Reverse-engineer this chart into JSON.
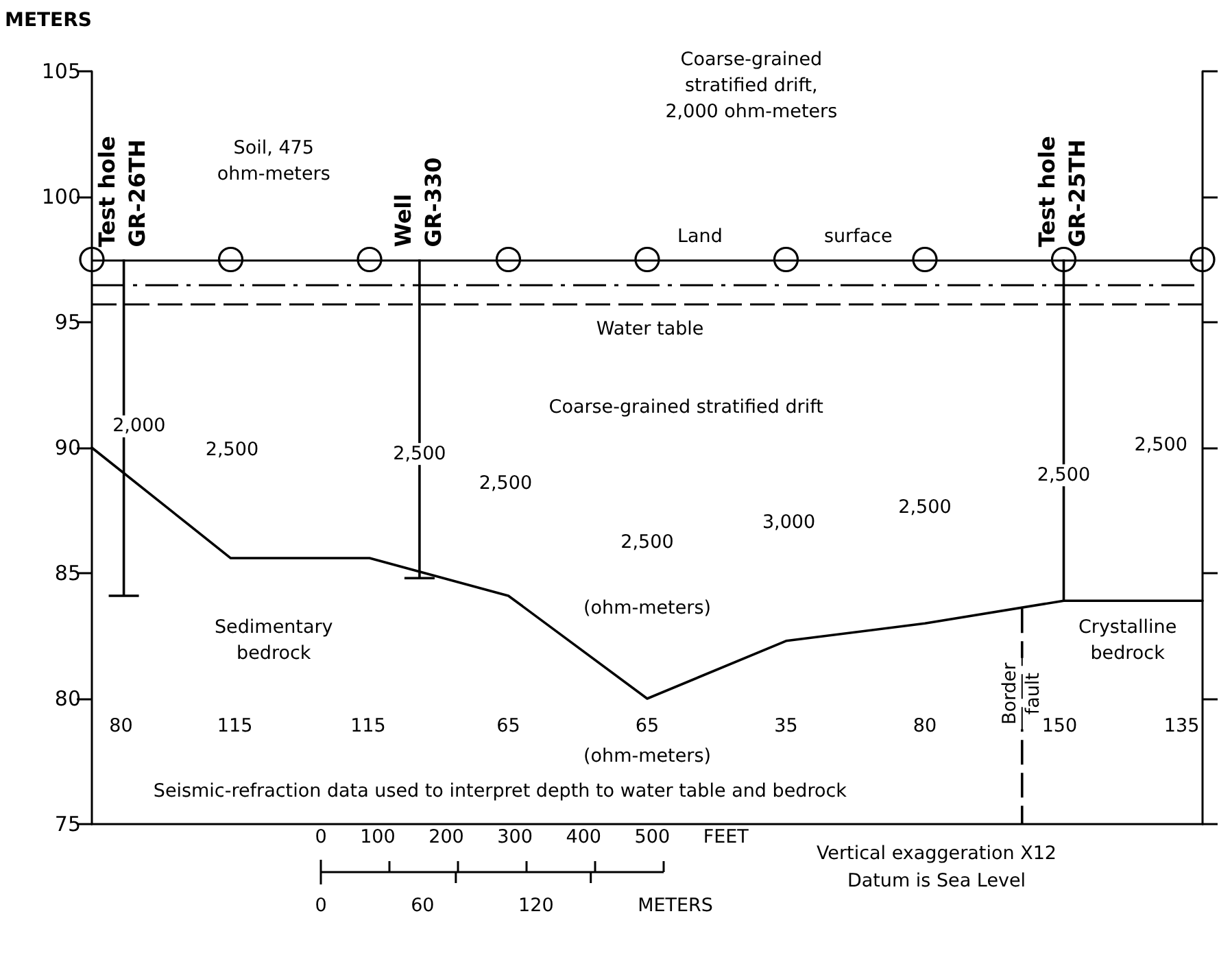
{
  "chart_data": {
    "type": "line",
    "ylabel": "METERS",
    "categories": [
      null,
      null,
      null,
      null,
      null,
      null,
      null,
      null,
      null
    ],
    "ylim": [
      75,
      105
    ],
    "yticks": [
      75,
      80,
      85,
      90,
      95,
      100,
      105
    ],
    "tick_labels": "y",
    "ref_lines": [
      {
        "axis": "y",
        "value": 97.5,
        "line_style": "solid",
        "color": "#000000"
      },
      {
        "axis": "y",
        "value": 96.5,
        "line_style": "dotted",
        "color": "#000000"
      },
      {
        "axis": "y",
        "value": 95.7,
        "line_style": "dashed",
        "color": "#000000"
      }
    ],
    "series": [
      {
        "color": "#000000",
        "values": [
          90,
          85.6,
          85.6,
          84.1,
          80,
          82.3,
          83.0,
          83.9,
          83.9
        ]
      }
    ],
    "annotations": [
      "0 100 200 300 400 500 FEET",
      "0 60 120 METERS",
      "Vertical exaggeration X12\nDatum is Sea Level",
      "Test hole\nGR-26TH",
      "Well\nGR-330",
      "Test hole\nGR-25TH",
      "Border\nfault",
      "Soil, 475\nohm-meters",
      "Coarse-grained\nstratified drift,\n2,000 ohm-meters",
      "Land",
      "surface",
      "Water table",
      "Coarse-grained stratified drift",
      "2,000",
      "2,500",
      "2,500",
      "2,500",
      "2,500",
      "3,000",
      "2,500",
      "2,500",
      "2,500",
      "(ohm-meters)",
      "Sedimentary\nbedrock",
      "Crystalline\nbedrock",
      "80",
      "115",
      "115",
      "65",
      "65",
      "35",
      "80",
      "150",
      "135",
      "(ohm-meters)",
      "Seismic-refraction data used to interpret depth to water table and bedrock"
    ]
  }
}
